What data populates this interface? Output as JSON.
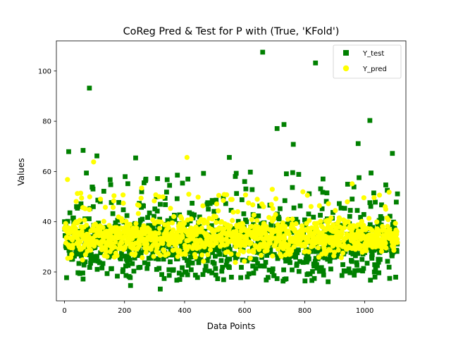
{
  "chart_data": {
    "type": "scatter",
    "title": "CoReg Pred & Test for P with (True, 'KFold')",
    "xlabel": "Data Points",
    "ylabel": "Values",
    "xlim": [
      -27,
      1137
    ],
    "ylim": [
      8.5,
      112
    ],
    "xticks": [
      0,
      200,
      400,
      600,
      800,
      1000
    ],
    "yticks": [
      20,
      40,
      60,
      80,
      100
    ],
    "legend_position": "upper right",
    "n_points": 1110,
    "series": [
      {
        "name": "Y_test",
        "marker": "square",
        "color": "#008000",
        "notable_values": [
          {
            "x": 83,
            "y": 93.2
          },
          {
            "x": 660,
            "y": 107.5
          },
          {
            "x": 836,
            "y": 103.2
          },
          {
            "x": 1017,
            "y": 80.3
          },
          {
            "x": 731,
            "y": 78.7
          },
          {
            "x": 708,
            "y": 77.1
          },
          {
            "x": 762,
            "y": 70.8
          },
          {
            "x": 978,
            "y": 71.1
          },
          {
            "x": 1092,
            "y": 67.2
          },
          {
            "x": 14,
            "y": 67.9
          },
          {
            "x": 62,
            "y": 68.4
          },
          {
            "x": 108,
            "y": 66.2
          },
          {
            "x": 237,
            "y": 65.4
          },
          {
            "x": 549,
            "y": 65.6
          },
          {
            "x": 319,
            "y": 13.2
          },
          {
            "x": 220,
            "y": 14.6
          }
        ],
        "range_summary": {
          "typical_min": 15,
          "typical_max": 60,
          "bulk_low": 18,
          "bulk_high": 50
        }
      },
      {
        "name": "Y_pred",
        "marker": "circle",
        "color": "#ffff00",
        "notable_values": [
          {
            "x": 408,
            "y": 65.6
          },
          {
            "x": 97,
            "y": 63.8
          },
          {
            "x": 10,
            "y": 56.8
          },
          {
            "x": 257,
            "y": 53.4
          },
          {
            "x": 692,
            "y": 52.9
          },
          {
            "x": 958,
            "y": 55.1
          }
        ],
        "range_summary": {
          "typical_min": 20,
          "typical_max": 50,
          "bulk_low": 26,
          "bulk_high": 44
        }
      }
    ]
  }
}
